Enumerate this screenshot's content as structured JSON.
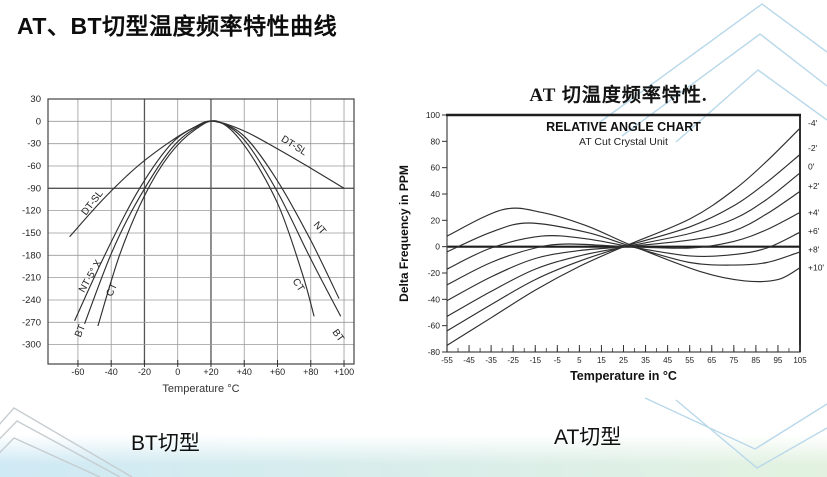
{
  "slide": {
    "title": "AT、BT切型温度频率特性曲线"
  },
  "captions": {
    "left": "BT切型",
    "right": "AT切型"
  },
  "colors": {
    "band_left": "#cfe9f5",
    "band_right": "#e3f2e0",
    "chevron_blue": "#b9d8ea",
    "chevron_grey": "#c6cdd0",
    "curve": "#2f2f2f",
    "grid": "#9a9a9a"
  },
  "chart_data": [
    {
      "type": "line",
      "title": "",
      "xlabel": "Temperature °C",
      "ylabel": "",
      "x_range": [
        -78,
        106
      ],
      "y_range": [
        30,
        -326
      ],
      "grid": true,
      "frame": true,
      "legend_position": "none",
      "emphasis": {
        "x": [
          -20,
          20
        ],
        "y": [
          -90
        ]
      },
      "x_ticks": {
        "values": [
          -60,
          -40,
          -20,
          0,
          20,
          40,
          60,
          80,
          100
        ],
        "labels": [
          "-60",
          "-40",
          "-20",
          "0",
          "+20",
          "+40",
          "+60",
          "+80",
          "+100"
        ]
      },
      "y_ticks": {
        "values": [
          30,
          0,
          -30,
          -60,
          -90,
          -120,
          -150,
          -180,
          -210,
          -240,
          -270,
          -300
        ],
        "labels": [
          "30",
          "0",
          "-30",
          "-60",
          "-90",
          "-120",
          "-150",
          "-180",
          "-210",
          "-240",
          "-270",
          "-300"
        ]
      },
      "series": [
        {
          "name": "DT-SL",
          "points": [
            [
              -65,
              -155
            ],
            [
              -45,
              -105
            ],
            [
              -25,
              -62
            ],
            [
              -5,
              -28
            ],
            [
              10,
              -8
            ],
            [
              22,
              0
            ],
            [
              40,
              -13
            ],
            [
              60,
              -37
            ],
            [
              80,
              -63
            ],
            [
              100,
              -90
            ]
          ]
        },
        {
          "name": "NT",
          "points": [
            [
              -62,
              -268
            ],
            [
              -45,
              -185
            ],
            [
              -25,
              -98
            ],
            [
              -5,
              -33
            ],
            [
              10,
              -8
            ],
            [
              22,
              0
            ],
            [
              40,
              -20
            ],
            [
              60,
              -80
            ],
            [
              80,
              -160
            ],
            [
              97,
              -238
            ]
          ]
        },
        {
          "name": "BT",
          "points": [
            [
              -56,
              -272
            ],
            [
              -40,
              -178
            ],
            [
              -25,
              -110
            ],
            [
              -5,
              -40
            ],
            [
              10,
              -10
            ],
            [
              23,
              0
            ],
            [
              40,
              -25
            ],
            [
              60,
              -95
            ],
            [
              80,
              -185
            ],
            [
              98,
              -262
            ]
          ]
        },
        {
          "name": "CT",
          "points": [
            [
              -48,
              -275
            ],
            [
              -35,
              -180
            ],
            [
              -20,
              -100
            ],
            [
              -5,
              -45
            ],
            [
              10,
              -12
            ],
            [
              24,
              0
            ],
            [
              40,
              -32
            ],
            [
              60,
              -110
            ],
            [
              75,
              -205
            ],
            [
              82,
              -262
            ]
          ]
        }
      ],
      "curve_labels": [
        {
          "text": "DT-SL",
          "x": -50,
          "y": -112,
          "rot": -52
        },
        {
          "text": "NT·5° X",
          "x": -51,
          "y": -210,
          "rot": -60
        },
        {
          "text": "BT",
          "x": -57,
          "y": -283,
          "rot": -68
        },
        {
          "text": "CT",
          "x": -38,
          "y": -228,
          "rot": -65
        },
        {
          "text": "DT-SL",
          "x": 69,
          "y": -36,
          "rot": 32
        },
        {
          "text": "NT",
          "x": 84,
          "y": -146,
          "rot": 50
        },
        {
          "text": "CT",
          "x": 71,
          "y": -222,
          "rot": 58
        },
        {
          "text": "BT",
          "x": 95,
          "y": -290,
          "rot": 55
        }
      ]
    },
    {
      "type": "line",
      "title": "AT 切温度频率特性.",
      "heading": "RELATIVE ANGLE CHART",
      "subheading": "AT Cut Crystal Unit",
      "xlabel": "Temperature in °C",
      "ylabel": "Delta Frequency in PPM",
      "x_range": [
        -55,
        105
      ],
      "y_range": [
        100,
        -80
      ],
      "grid": false,
      "frame": true,
      "zero_line": true,
      "x_minor_step": 5,
      "legend_position": "right-edge-angle-labels",
      "x_ticks": {
        "values": [
          -55,
          -45,
          -35,
          -25,
          -15,
          -5,
          5,
          15,
          25,
          35,
          45,
          55,
          65,
          75,
          85,
          95,
          105
        ],
        "labels": [
          "-55",
          "-45",
          "-35",
          "-25",
          "-15",
          "-5",
          "5",
          "15",
          "25",
          "35",
          "45",
          "55",
          "65",
          "75",
          "85",
          "95",
          "105"
        ]
      },
      "y_ticks": {
        "values": [
          100,
          80,
          60,
          40,
          20,
          0,
          -20,
          -40,
          -60,
          -80
        ],
        "labels": [
          "100",
          "80",
          "60",
          "40",
          "20",
          "0",
          "-20",
          "-40",
          "-60",
          "-80"
        ]
      },
      "series": [
        {
          "name": "-4'",
          "points": [
            [
              -55,
              -75
            ],
            [
              -35,
              -54
            ],
            [
              -15,
              -33
            ],
            [
              5,
              -15
            ],
            [
              25,
              0
            ],
            [
              55,
              21
            ],
            [
              75,
              43
            ],
            [
              90,
              65
            ],
            [
              105,
              90
            ]
          ]
        },
        {
          "name": "-2'",
          "points": [
            [
              -55,
              -64
            ],
            [
              -35,
              -44
            ],
            [
              -15,
              -25
            ],
            [
              5,
              -11
            ],
            [
              25,
              0
            ],
            [
              55,
              15
            ],
            [
              75,
              31
            ],
            [
              90,
              49
            ],
            [
              105,
              70
            ]
          ]
        },
        {
          "name": "0'",
          "points": [
            [
              -55,
              -53
            ],
            [
              -35,
              -34
            ],
            [
              -15,
              -17
            ],
            [
              5,
              -7
            ],
            [
              26,
              0
            ],
            [
              55,
              10
            ],
            [
              75,
              21
            ],
            [
              90,
              36
            ],
            [
              105,
              56
            ]
          ]
        },
        {
          "name": "+2'",
          "points": [
            [
              -55,
              -41
            ],
            [
              -35,
              -23
            ],
            [
              -15,
              -9
            ],
            [
              5,
              -3
            ],
            [
              26,
              0
            ],
            [
              55,
              5
            ],
            [
              75,
              12
            ],
            [
              90,
              25
            ],
            [
              105,
              42
            ]
          ]
        },
        {
          "name": "+4'",
          "points": [
            [
              -55,
              -29
            ],
            [
              -35,
              -12
            ],
            [
              -15,
              -1
            ],
            [
              0,
              2
            ],
            [
              27,
              0
            ],
            [
              55,
              -1
            ],
            [
              75,
              4
            ],
            [
              90,
              13
            ],
            [
              105,
              26
            ]
          ]
        },
        {
          "name": "+6'",
          "points": [
            [
              -55,
              -17
            ],
            [
              -35,
              -1
            ],
            [
              -12,
              8
            ],
            [
              8,
              6
            ],
            [
              28,
              0
            ],
            [
              55,
              -7
            ],
            [
              75,
              -6
            ],
            [
              90,
              -1
            ],
            [
              105,
              11
            ]
          ]
        },
        {
          "name": "+8'",
          "points": [
            [
              -55,
              -4
            ],
            [
              -35,
              11
            ],
            [
              -18,
              18
            ],
            [
              8,
              11
            ],
            [
              29,
              0
            ],
            [
              55,
              -12
            ],
            [
              75,
              -14
            ],
            [
              90,
              -12
            ],
            [
              105,
              -4
            ]
          ]
        },
        {
          "name": "+10'",
          "points": [
            [
              -55,
              8
            ],
            [
              -30,
              28
            ],
            [
              -12,
              26
            ],
            [
              8,
              16
            ],
            [
              30,
              0
            ],
            [
              60,
              -19
            ],
            [
              80,
              -26
            ],
            [
              95,
              -25
            ],
            [
              105,
              -16
            ]
          ]
        }
      ],
      "angle_labels": [
        {
          "text": "-4'",
          "v": 94
        },
        {
          "text": "-2'",
          "v": 75
        },
        {
          "text": "0'",
          "v": 61
        },
        {
          "text": "+2'",
          "v": 46
        },
        {
          "text": "+4'",
          "v": 26
        },
        {
          "text": "+6'",
          "v": 12
        },
        {
          "text": "+8'",
          "v": -2
        },
        {
          "text": "+10'",
          "v": -16
        }
      ]
    }
  ]
}
